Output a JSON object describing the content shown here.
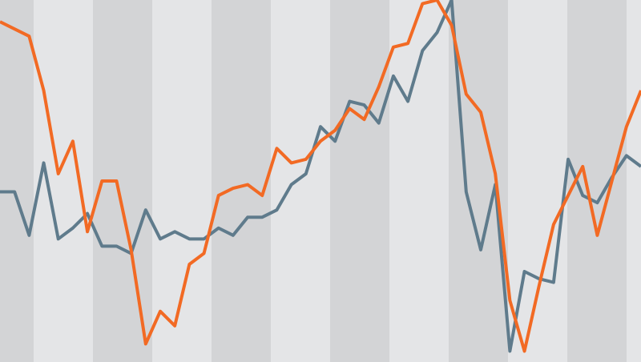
{
  "chart_data": {
    "type": "line",
    "title": "",
    "xlabel": "",
    "ylabel": "",
    "x": [
      0,
      1,
      2,
      3,
      4,
      5,
      6,
      7,
      8,
      9,
      10,
      11,
      12,
      13,
      14,
      15,
      16,
      17,
      18,
      19,
      20,
      21,
      22,
      23,
      24,
      25,
      26,
      27,
      28,
      29,
      30,
      31,
      32,
      33,
      34,
      35,
      36,
      37,
      38,
      39,
      40,
      41,
      42,
      43,
      44
    ],
    "ylim": [
      0,
      100
    ],
    "grid": false,
    "legend": "none",
    "background_bands": {
      "dark": "#d3d4d6",
      "light": "#e4e5e7",
      "count": 11
    },
    "series": [
      {
        "color": "#f26a24",
        "values": [
          94,
          92,
          90,
          75,
          52,
          61,
          36,
          50,
          50,
          31,
          5,
          14,
          10,
          27,
          30,
          46,
          48,
          49,
          46,
          59,
          55,
          56,
          61,
          64,
          70,
          67,
          76,
          87,
          88,
          99,
          100,
          93,
          74,
          69,
          52,
          17,
          3,
          21,
          38,
          46,
          54,
          35,
          50,
          65,
          75
        ]
      },
      {
        "color": "#5f7b8c",
        "values": [
          47,
          47,
          35,
          55,
          34,
          37,
          41,
          32,
          32,
          30,
          42,
          34,
          36,
          34,
          34,
          37,
          35,
          40,
          40,
          42,
          49,
          52,
          65,
          61,
          72,
          71,
          66,
          79,
          72,
          86,
          91,
          100,
          47,
          31,
          49,
          3,
          25,
          23,
          22,
          56,
          46,
          44,
          51,
          57,
          54
        ]
      }
    ]
  }
}
